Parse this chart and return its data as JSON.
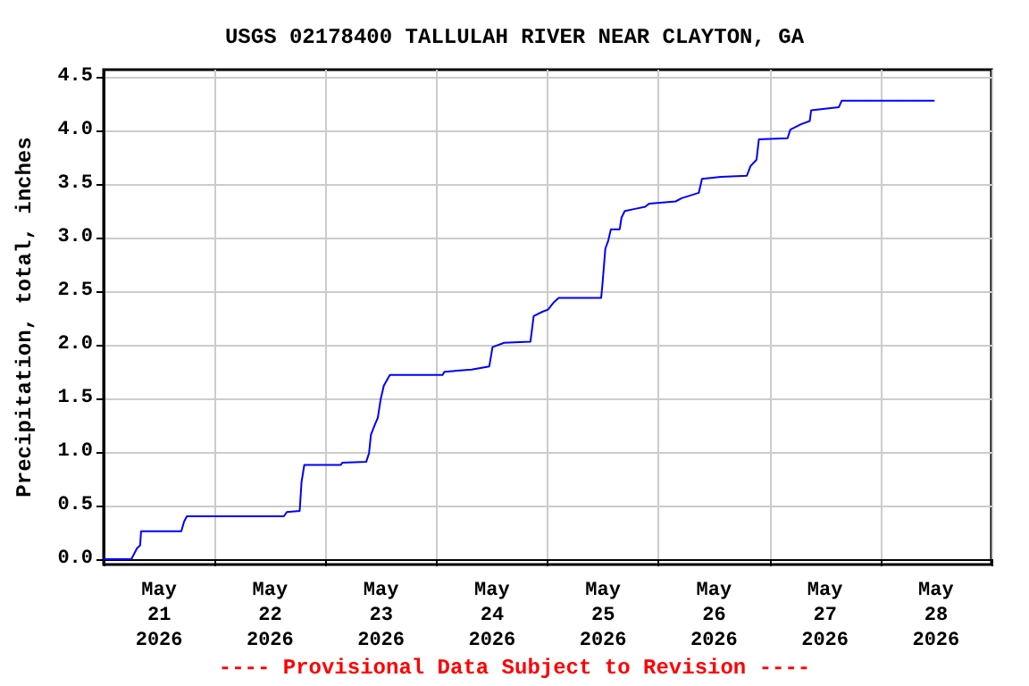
{
  "chart_data": {
    "type": "line",
    "title": "USGS 02178400 TALLULAH RIVER NEAR CLAYTON, GA",
    "ylabel": "Precipitation, total, inches",
    "annotations": [
      "---- Provisional Data Subject to Revision ----"
    ],
    "x": [
      "2026-05-21T00:00",
      "2026-05-21T06:00",
      "2026-05-21T06:36",
      "2026-05-21T07:12",
      "2026-05-21T07:54",
      "2026-05-21T08:06",
      "2026-05-21T16:48",
      "2026-05-21T17:24",
      "2026-05-21T18:00",
      "2026-05-22T15:00",
      "2026-05-22T15:36",
      "2026-05-22T18:24",
      "2026-05-22T18:48",
      "2026-05-22T19:24",
      "2026-05-23T03:18",
      "2026-05-23T03:36",
      "2026-05-23T08:48",
      "2026-05-23T09:24",
      "2026-05-23T09:48",
      "2026-05-23T10:42",
      "2026-05-23T11:18",
      "2026-05-23T11:54",
      "2026-05-23T12:36",
      "2026-05-23T13:54",
      "2026-05-24T01:18",
      "2026-05-24T01:42",
      "2026-05-24T07:36",
      "2026-05-24T11:24",
      "2026-05-24T12:06",
      "2026-05-24T14:36",
      "2026-05-24T20:18",
      "2026-05-24T21:00",
      "2026-05-24T22:54",
      "2026-05-25T00:06",
      "2026-05-25T01:24",
      "2026-05-25T02:24",
      "2026-05-25T11:36",
      "2026-05-25T11:54",
      "2026-05-25T12:30",
      "2026-05-25T13:06",
      "2026-05-25T13:42",
      "2026-05-25T15:36",
      "2026-05-25T16:00",
      "2026-05-25T16:42",
      "2026-05-25T18:54",
      "2026-05-25T21:06",
      "2026-05-25T22:00",
      "2026-05-26T03:42",
      "2026-05-26T05:00",
      "2026-05-26T08:42",
      "2026-05-26T09:24",
      "2026-05-26T13:30",
      "2026-05-26T19:06",
      "2026-05-26T19:54",
      "2026-05-26T21:12",
      "2026-05-26T21:42",
      "2026-05-27T03:54",
      "2026-05-27T04:30",
      "2026-05-27T06:48",
      "2026-05-27T08:42",
      "2026-05-27T09:00",
      "2026-05-27T15:00",
      "2026-05-27T15:36",
      "2026-05-28T11:42"
    ],
    "series": [
      {
        "color": "#0000ff",
        "values": [
          0,
          0,
          0.05,
          0.1,
          0.13,
          0.26,
          0.26,
          0.35,
          0.4,
          0.4,
          0.44,
          0.45,
          0.72,
          0.88,
          0.88,
          0.9,
          0.91,
          0.99,
          1.16,
          1.26,
          1.32,
          1.49,
          1.62,
          1.72,
          1.72,
          1.75,
          1.77,
          1.8,
          1.98,
          2.02,
          2.03,
          2.27,
          2.31,
          2.33,
          2.4,
          2.44,
          2.44,
          2.58,
          2.9,
          2.97,
          3.08,
          3.08,
          3.19,
          3.25,
          3.27,
          3.29,
          3.32,
          3.34,
          3.37,
          3.42,
          3.55,
          3.57,
          3.58,
          3.67,
          3.73,
          3.92,
          3.93,
          4.01,
          4.06,
          4.09,
          4.19,
          4.22,
          4.28,
          4.28
        ]
      }
    ],
    "xlim": [
      "2026-05-21T00:00",
      "2026-05-29T00:00"
    ],
    "xticks": [
      {
        "value": "2026-05-21T00:00",
        "label": null
      },
      {
        "value": "2026-05-22T00:00",
        "label": null
      },
      {
        "value": "2026-05-23T00:00",
        "label": null
      },
      {
        "value": "2026-05-24T00:00",
        "label": null
      },
      {
        "value": "2026-05-25T00:00",
        "label": null
      },
      {
        "value": "2026-05-26T00:00",
        "label": null
      },
      {
        "value": "2026-05-27T00:00",
        "label": null
      },
      {
        "value": "2026-05-28T00:00",
        "label": null
      },
      {
        "value": "2026-05-29T00:00",
        "label": null
      },
      {
        "value": "2026-05-21T12:00",
        "label": "May\n21\n2026"
      },
      {
        "value": "2026-05-22T12:00",
        "label": "May\n22\n2026"
      },
      {
        "value": "2026-05-23T12:00",
        "label": "May\n23\n2026"
      },
      {
        "value": "2026-05-24T12:00",
        "label": "May\n24\n2026"
      },
      {
        "value": "2026-05-25T12:00",
        "label": "May\n25\n2026"
      },
      {
        "value": "2026-05-26T12:00",
        "label": "May\n26\n2026"
      },
      {
        "value": "2026-05-27T12:00",
        "label": "May\n27\n2026"
      },
      {
        "value": "2026-05-28T12:00",
        "label": "May\n28\n2026"
      }
    ],
    "ylim": [
      -0.05,
      4.57
    ],
    "yticks": [
      {
        "value": 0,
        "label": "0.0"
      },
      {
        "value": 0.5,
        "label": "0.5"
      },
      {
        "value": 1,
        "label": "1.0"
      },
      {
        "value": 1.5,
        "label": "1.5"
      },
      {
        "value": 2,
        "label": "2.0"
      },
      {
        "value": 2.5,
        "label": "2.5"
      },
      {
        "value": 3,
        "label": "3.0"
      },
      {
        "value": 3.5,
        "label": "3.5"
      },
      {
        "value": 4,
        "label": "4.0"
      },
      {
        "value": 4.5,
        "label": "4.5"
      }
    ],
    "grid": true
  }
}
